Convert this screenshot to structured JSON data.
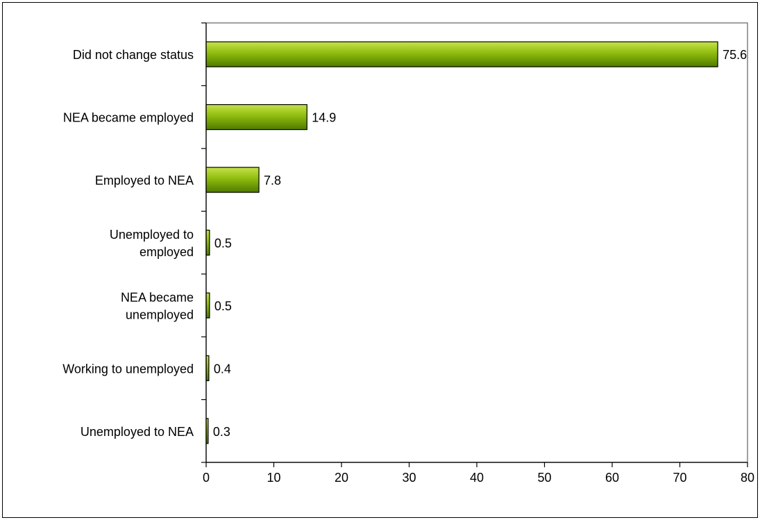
{
  "colors": {
    "bar_light": "#c6e24a",
    "bar_mid": "#8fbc0f",
    "bar_dark": "#4e7a00",
    "bar_outline": "#000000",
    "plot_border": "#808080"
  },
  "chart_data": {
    "type": "bar",
    "orientation": "horizontal",
    "categories": [
      "Did not change status",
      "NEA became employed",
      "Employed to NEA",
      "Unemployed to employed",
      "NEA became unemployed",
      "Working to unemployed",
      "Unemployed to NEA"
    ],
    "category_lines": [
      [
        "Did not change status"
      ],
      [
        "NEA became employed"
      ],
      [
        "Employed to NEA"
      ],
      [
        "Unemployed to",
        "employed"
      ],
      [
        "NEA became",
        "unemployed"
      ],
      [
        "Working to unemployed"
      ],
      [
        "Unemployed to NEA"
      ]
    ],
    "values": [
      75.6,
      14.9,
      7.8,
      0.5,
      0.5,
      0.4,
      0.3
    ],
    "value_labels": [
      "75.6",
      "14.9",
      "7.8",
      "0.5",
      "0.5",
      "0.4",
      "0.3"
    ],
    "xlim": [
      0,
      80
    ],
    "xticks": [
      0,
      10,
      20,
      30,
      40,
      50,
      60,
      70,
      80
    ],
    "xtick_labels": [
      "0",
      "10",
      "20",
      "30",
      "40",
      "50",
      "60",
      "70",
      "80"
    ],
    "grid": false,
    "legend": "none",
    "title": "",
    "xlabel": "",
    "ylabel": ""
  }
}
